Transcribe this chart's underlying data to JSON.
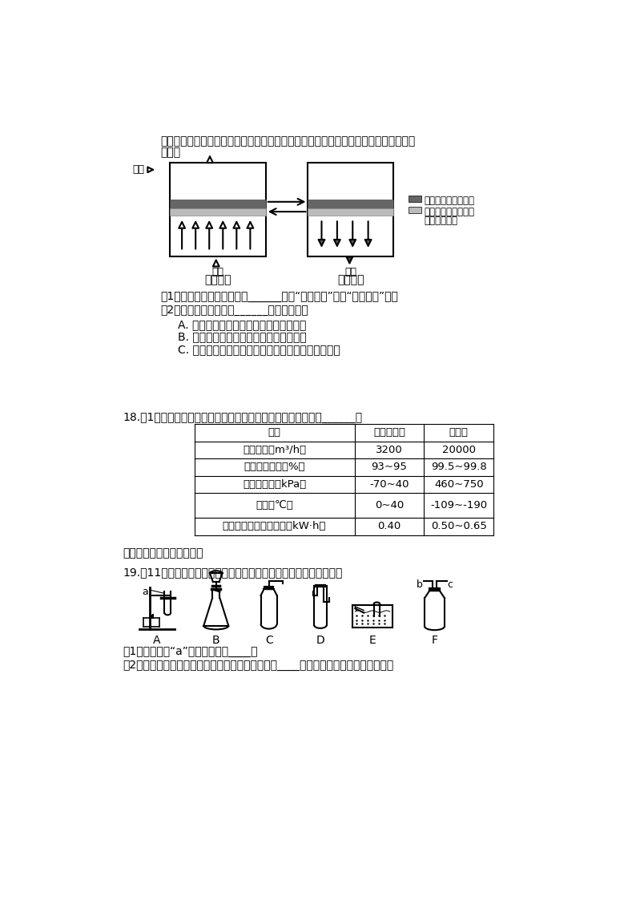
{
  "bg_color": "#ffffff",
  "intro_text": "在吸附塔中，通过加压与减压的交替循环，可以使分子筛重复使用，部分过程的示意图",
  "intro_text2": "如下。",
  "legend1_label": "分子筛（吸附氮气）",
  "legend2_label": "氧化铝（除去水蒸气",
  "legend2_label2": "和二氧化碳）",
  "oxygen_label": "氧气",
  "air_label": "空气",
  "nitrogen_label": "氮气",
  "left_label": "增压过程",
  "right_label": "减压过程",
  "q1_text": "（1）分子筛中发生的变化是______（填“物理变化”或者“化学变化”）。",
  "q2_text": "（2）下列说法正确的是______（填序号）。",
  "qa_text": "A. 变压吸附法制取的氧气中含有稀有气体",
  "qb_text": "B. 变压吸附法制取的氧气中含有二氧化碳",
  "qc_text": "C. 分子筛对氮气的吸附能力与吸附塔内气体压强有关",
  "q18_text": "18.（1分）分析下表数据，与深冷法相比，变压吸附法的优点是______。",
  "table_headers": [
    "项目",
    "变压吸附法",
    "深冷法"
  ],
  "table_rows": [
    [
      "最大产量（m³/h）",
      "3200",
      "20000"
    ],
    [
      "产品气含氧量（%）",
      "93~95",
      "99.5~99.8"
    ],
    [
      "工作表压强（kPa）",
      "-70~40",
      "460~750"
    ],
    [
      "温度（℃）",
      "0~40",
      "-109~-190"
    ],
    [
      "产每立方米氧气耗电量（kW·h）",
      "0.40",
      "0.50~0.65"
    ]
  ],
  "section_label": "《基本实验及其原理分析》",
  "q19_text": "19.！11分）实验室制取气体所需装置如下图所示，请回答以下问题：",
  "equip_labels": [
    "A",
    "B",
    "C",
    "D",
    "E",
    "F"
  ],
  "q19_1": "（1）装置中标“a”的付器名称是____。",
  "q19_2": "（2）用高锡酸钒制取氧气时，所选用的发生装置是____（填字母序号，下同），收集装"
}
